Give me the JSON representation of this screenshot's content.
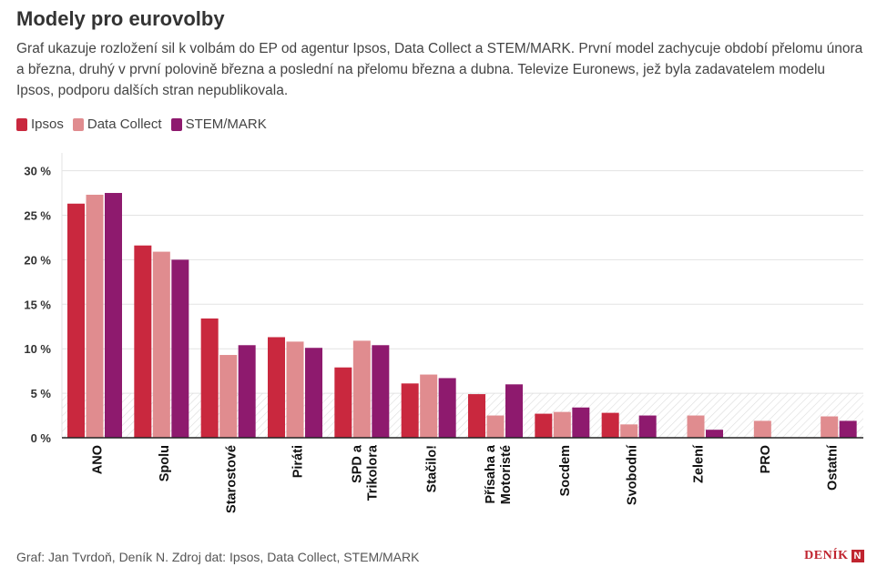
{
  "title": "Modely pro eurovolby",
  "subtitle": "Graf ukazuje rozložení sil k volbám do EP od agentur Ipsos, Data Collect a STEM/MARK. První model zachycuje období přelomu února a března, druhý v první polovině března a poslední na přelomu března a dubna. Televize Euronews, jež byla zadavatelem modelu Ipsos, podporu dalších stran nepublikovala.",
  "footer": "Graf: Jan Tvrdoň, Deník N. Zdroj dat: Ipsos, Data Collect, STEM/MARK",
  "logo": {
    "text": "DENÍK",
    "mark": "N"
  },
  "chart_data": {
    "type": "bar",
    "categories": [
      "ANO",
      "Spolu",
      "Starostové",
      "Piráti",
      "SPD a Trikolora",
      "Stačilo!",
      "Přísaha a Motoristé",
      "Socdem",
      "Svobodní",
      "Zelení",
      "PRO",
      "Ostatní"
    ],
    "category_lines": [
      [
        "ANO"
      ],
      [
        "Spolu"
      ],
      [
        "Starostové"
      ],
      [
        "Piráti"
      ],
      [
        "SPD a",
        "Trikolora"
      ],
      [
        "Stačilo!"
      ],
      [
        "Přísaha a",
        "Motoristé"
      ],
      [
        "Socdem"
      ],
      [
        "Svobodní"
      ],
      [
        "Zelení"
      ],
      [
        "PRO"
      ],
      [
        "Ostatní"
      ]
    ],
    "series": [
      {
        "name": "Ipsos",
        "color": "#c9283e",
        "values": [
          26.3,
          21.6,
          13.4,
          11.3,
          7.9,
          6.1,
          4.9,
          2.7,
          2.8,
          null,
          null,
          null
        ]
      },
      {
        "name": "Data Collect",
        "color": "#e08c8f",
        "values": [
          27.3,
          20.9,
          9.3,
          10.8,
          10.9,
          7.1,
          2.5,
          2.9,
          1.5,
          2.5,
          1.9,
          2.4
        ]
      },
      {
        "name": "STEM/MARK",
        "color": "#8e1a6e",
        "values": [
          27.5,
          20.0,
          10.4,
          10.1,
          10.4,
          6.7,
          6.0,
          3.4,
          2.5,
          0.9,
          null,
          1.9
        ]
      }
    ],
    "ylim": [
      0,
      32
    ],
    "yticks": [
      0,
      5,
      10,
      15,
      20,
      25,
      30
    ],
    "ytick_labels": [
      "0 %",
      "5 %",
      "10 %",
      "15 %",
      "20 %",
      "25 %",
      "30 %"
    ],
    "threshold": 5,
    "grid": true,
    "legend_position": "top-left"
  }
}
